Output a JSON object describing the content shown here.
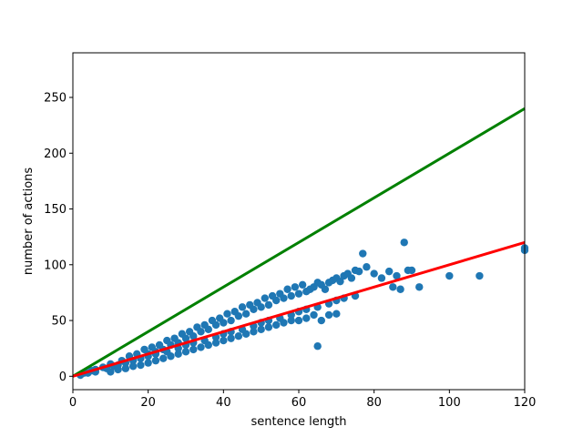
{
  "chart_data": {
    "type": "scatter",
    "xlabel": "sentence length",
    "ylabel": "number of actions",
    "xlim": [
      0,
      120
    ],
    "ylim": [
      -12,
      290
    ],
    "xticks": [
      0,
      20,
      40,
      60,
      80,
      100,
      120
    ],
    "yticks": [
      0,
      50,
      100,
      150,
      200,
      250
    ],
    "grid": false,
    "legend": "none",
    "scatter_color": "#1f77b4",
    "lines": [
      {
        "color": "#008000",
        "points": [
          [
            0,
            0
          ],
          [
            120,
            240
          ]
        ]
      },
      {
        "color": "#ff0000",
        "points": [
          [
            0,
            0
          ],
          [
            120,
            120
          ]
        ]
      }
    ],
    "series": [
      {
        "points": [
          [
            2,
            1
          ],
          [
            3,
            3
          ],
          [
            4,
            3
          ],
          [
            5,
            5
          ],
          [
            6,
            6
          ],
          [
            6,
            4
          ],
          [
            8,
            8
          ],
          [
            9,
            7
          ],
          [
            10,
            11
          ],
          [
            11,
            9
          ],
          [
            12,
            10
          ],
          [
            13,
            14
          ],
          [
            14,
            12
          ],
          [
            15,
            18
          ],
          [
            16,
            14
          ],
          [
            17,
            20
          ],
          [
            18,
            16
          ],
          [
            19,
            24
          ],
          [
            20,
            20
          ],
          [
            21,
            26
          ],
          [
            22,
            22
          ],
          [
            23,
            28
          ],
          [
            24,
            24
          ],
          [
            25,
            32
          ],
          [
            26,
            28
          ],
          [
            27,
            34
          ],
          [
            28,
            30
          ],
          [
            29,
            38
          ],
          [
            30,
            34
          ],
          [
            31,
            40
          ],
          [
            32,
            36
          ],
          [
            33,
            44
          ],
          [
            34,
            40
          ],
          [
            35,
            46
          ],
          [
            36,
            42
          ],
          [
            37,
            50
          ],
          [
            38,
            46
          ],
          [
            39,
            52
          ],
          [
            40,
            48
          ],
          [
            41,
            56
          ],
          [
            42,
            50
          ],
          [
            43,
            58
          ],
          [
            44,
            54
          ],
          [
            45,
            62
          ],
          [
            46,
            56
          ],
          [
            47,
            64
          ],
          [
            48,
            60
          ],
          [
            49,
            66
          ],
          [
            50,
            62
          ],
          [
            51,
            70
          ],
          [
            52,
            64
          ],
          [
            53,
            72
          ],
          [
            54,
            68
          ],
          [
            55,
            74
          ],
          [
            56,
            70
          ],
          [
            57,
            78
          ],
          [
            58,
            72
          ],
          [
            59,
            80
          ],
          [
            60,
            74
          ],
          [
            61,
            82
          ],
          [
            62,
            76
          ],
          [
            63,
            78
          ],
          [
            64,
            80
          ],
          [
            65,
            84
          ],
          [
            66,
            82
          ],
          [
            67,
            78
          ],
          [
            68,
            84
          ],
          [
            69,
            86
          ],
          [
            70,
            88
          ],
          [
            71,
            85
          ],
          [
            72,
            90
          ],
          [
            73,
            92
          ],
          [
            74,
            88
          ],
          [
            75,
            95
          ],
          [
            76,
            94
          ],
          [
            77,
            110
          ],
          [
            78,
            98
          ],
          [
            80,
            92
          ],
          [
            82,
            88
          ],
          [
            84,
            94
          ],
          [
            85,
            80
          ],
          [
            86,
            90
          ],
          [
            87,
            78
          ],
          [
            88,
            120
          ],
          [
            89,
            95
          ],
          [
            90,
            95
          ],
          [
            92,
            80
          ],
          [
            100,
            90
          ],
          [
            108,
            90
          ],
          [
            120,
            115
          ],
          [
            120,
            113
          ],
          [
            10,
            4
          ],
          [
            12,
            6
          ],
          [
            14,
            7
          ],
          [
            16,
            9
          ],
          [
            18,
            10
          ],
          [
            20,
            12
          ],
          [
            22,
            14
          ],
          [
            24,
            16
          ],
          [
            26,
            18
          ],
          [
            28,
            20
          ],
          [
            30,
            22
          ],
          [
            32,
            24
          ],
          [
            34,
            26
          ],
          [
            36,
            28
          ],
          [
            38,
            30
          ],
          [
            40,
            32
          ],
          [
            42,
            34
          ],
          [
            44,
            36
          ],
          [
            46,
            38
          ],
          [
            48,
            40
          ],
          [
            50,
            42
          ],
          [
            52,
            44
          ],
          [
            54,
            46
          ],
          [
            56,
            48
          ],
          [
            58,
            50
          ],
          [
            60,
            50
          ],
          [
            62,
            52
          ],
          [
            64,
            55
          ],
          [
            65,
            27
          ],
          [
            66,
            50
          ],
          [
            68,
            55
          ],
          [
            70,
            56
          ],
          [
            20,
            18
          ],
          [
            22,
            20
          ],
          [
            25,
            22
          ],
          [
            28,
            25
          ],
          [
            30,
            28
          ],
          [
            32,
            30
          ],
          [
            35,
            32
          ],
          [
            38,
            35
          ],
          [
            40,
            38
          ],
          [
            42,
            40
          ],
          [
            45,
            42
          ],
          [
            48,
            45
          ],
          [
            50,
            48
          ],
          [
            52,
            50
          ],
          [
            55,
            52
          ],
          [
            58,
            55
          ],
          [
            60,
            58
          ],
          [
            62,
            60
          ],
          [
            65,
            62
          ],
          [
            68,
            65
          ],
          [
            70,
            68
          ],
          [
            72,
            70
          ],
          [
            75,
            72
          ]
        ]
      }
    ]
  }
}
